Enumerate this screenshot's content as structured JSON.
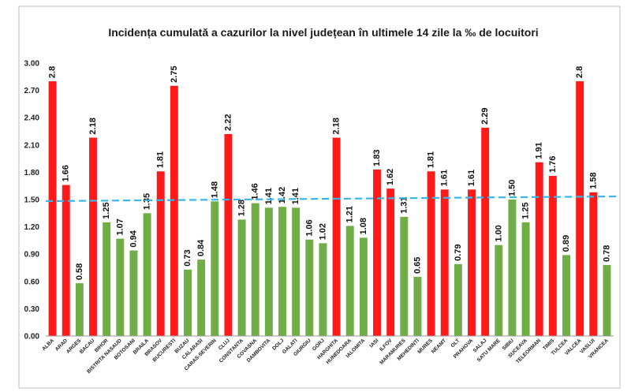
{
  "chart_data": {
    "type": "bar",
    "title": "Incidența cumulată a cazurilor la nivel județean în ultimele 14 zile la ‰ de locuitori",
    "xlabel": "",
    "ylabel": "",
    "ylim": [
      0,
      3.0
    ],
    "yticks": [
      "0.00",
      "0.30",
      "0.60",
      "0.90",
      "1.20",
      "1.50",
      "1.80",
      "2.10",
      "2.40",
      "2.70",
      "3.00"
    ],
    "threshold": 1.5,
    "threshold_color": "#3cb4e6",
    "colors": {
      "above": "#ff1a1a",
      "below": "#70ad47"
    },
    "grid": false,
    "legend": "none",
    "categories": [
      "ALBA",
      "ARAD",
      "ARGES",
      "BACAU",
      "BIHOR",
      "BISTRITA NASAUD",
      "BOTOSANI",
      "BRAILA",
      "BRASOV",
      "BUCURESTI",
      "BUZAU",
      "CALARASI",
      "CARAS-SEVERIN",
      "CLUJ",
      "CONSTANTA",
      "COVASNA",
      "DAMBOVITA",
      "DOLJ",
      "GALATI",
      "GIURGIU",
      "GORJ",
      "HARGHITA",
      "HUNEDOARA",
      "IALOMITA",
      "IASI",
      "ILFOV",
      "MARAMURES",
      "MEHEDINTI",
      "MURES",
      "NEAMT",
      "OLT",
      "PRAHOVA",
      "SALAJ",
      "SATU MARE",
      "SIBIU",
      "SUCEAVA",
      "TELEORMAN",
      "TIMIS",
      "TULCEA",
      "VALCEA",
      "VASLUI",
      "VRANCEA"
    ],
    "values": [
      2.8,
      1.66,
      0.58,
      2.18,
      1.25,
      1.07,
      0.94,
      1.35,
      1.81,
      2.75,
      0.73,
      0.84,
      1.48,
      2.22,
      1.28,
      1.46,
      1.41,
      1.42,
      1.41,
      1.06,
      1.02,
      2.18,
      1.21,
      1.08,
      1.83,
      1.62,
      1.31,
      0.65,
      1.81,
      1.61,
      0.79,
      1.61,
      2.29,
      1.0,
      1.5,
      1.25,
      1.91,
      1.76,
      0.89,
      2.8,
      1.58,
      0.78
    ],
    "labels": [
      "2.8",
      "1.66",
      "0.58",
      "2.18",
      "1.25",
      "1.07",
      "0.94",
      "1.35",
      "1.81",
      "2.75",
      "0.73",
      "0.84",
      "1.48",
      "2.22",
      "1.28",
      "1.46",
      "1.41",
      "1.42",
      "1.41",
      "1.06",
      "1.02",
      "2.18",
      "1.21",
      "1.08",
      "1.83",
      "1.62",
      "1.31",
      "0.65",
      "1.81",
      "1.61",
      "0.79",
      "1.61",
      "2.29",
      "1.00",
      "1.50",
      "1.25",
      "1.91",
      "1.76",
      "0.89",
      "2.8",
      "1.58",
      "0.78"
    ],
    "bar_colors": [
      "red",
      "red",
      "green",
      "red",
      "green",
      "green",
      "green",
      "green",
      "red",
      "red",
      "green",
      "green",
      "green",
      "red",
      "green",
      "green",
      "green",
      "green",
      "green",
      "green",
      "green",
      "red",
      "green",
      "green",
      "red",
      "red",
      "green",
      "green",
      "red",
      "red",
      "green",
      "red",
      "red",
      "green",
      "green",
      "green",
      "red",
      "red",
      "green",
      "red",
      "red",
      "green"
    ]
  }
}
